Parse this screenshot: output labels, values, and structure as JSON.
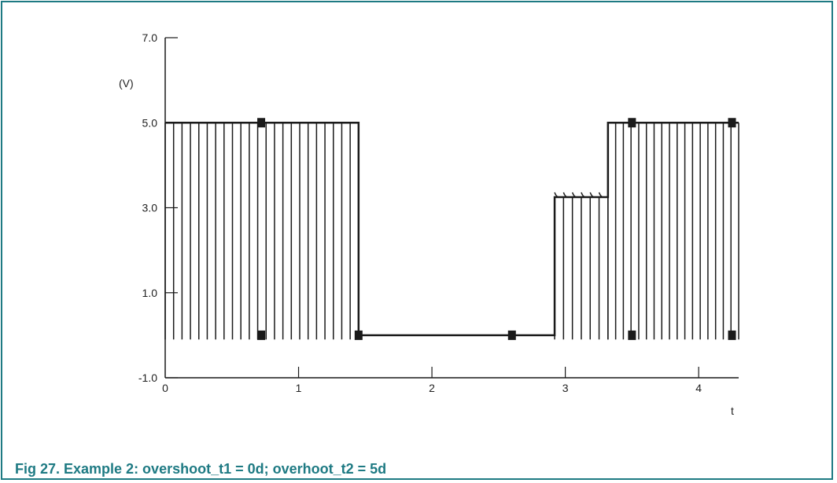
{
  "caption": "Fig 27. Example 2: overshoot_t1 = 0d; overhoot_t2 = 5d",
  "colors": {
    "frame": "#1e7a83",
    "caption": "#1e7a83",
    "trace": "#1a1a1a"
  },
  "chart_data": {
    "type": "line",
    "title": "",
    "xlabel": "t",
    "ylabel": "(V)",
    "xlim": [
      0,
      4.3
    ],
    "ylim": [
      -1.0,
      7.0
    ],
    "x_ticks": [
      "0",
      "1",
      "2",
      "3",
      "4"
    ],
    "y_ticks": [
      "-1.0",
      "1.0",
      "3.0",
      "5.0",
      "7.0"
    ],
    "grid": false,
    "series": [
      {
        "style": "step",
        "x": [
          0,
          1.45,
          1.45,
          2.92,
          2.92,
          3.32,
          3.32,
          4.3
        ],
        "y": [
          5.0,
          5.0,
          0,
          0,
          3.25,
          3.25,
          5.0,
          5.0
        ]
      }
    ],
    "pulse_lines": [
      {
        "x_start": 0.0,
        "x_end": 1.45,
        "count": 24,
        "y_low": -0.1,
        "y_high": 5.0
      },
      {
        "x_start": 2.92,
        "x_end": 3.32,
        "count": 7,
        "y_low": -0.1,
        "y_high": 3.25
      },
      {
        "x_start": 3.32,
        "x_end": 4.3,
        "count": 18,
        "y_low": -0.1,
        "y_high": 5.0
      }
    ],
    "markers": [
      {
        "x": 0.72,
        "y": 5.0
      },
      {
        "x": 0.72,
        "y": 0
      },
      {
        "x": 1.45,
        "y": 0
      },
      {
        "x": 2.6,
        "y": 0
      },
      {
        "x": 3.5,
        "y": 5.0
      },
      {
        "x": 3.5,
        "y": 0
      },
      {
        "x": 4.25,
        "y": 5.0
      },
      {
        "x": 4.25,
        "y": 0
      }
    ]
  }
}
